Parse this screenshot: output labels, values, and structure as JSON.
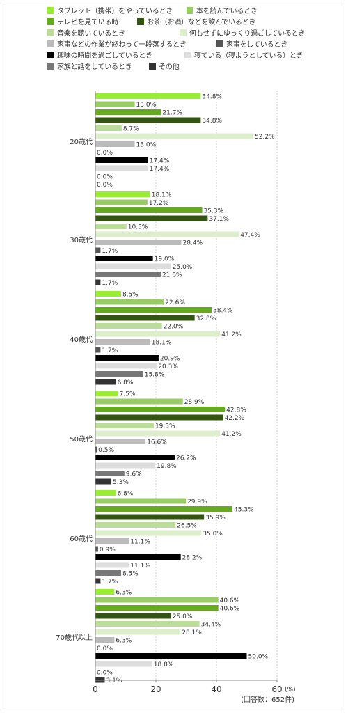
{
  "chart_data": {
    "type": "bar",
    "orientation": "horizontal",
    "categories": [
      "20歳代",
      "30歳代",
      "40歳代",
      "50歳代",
      "60歳代",
      "70歳代以上"
    ],
    "series": [
      {
        "name": "タブレット（携帯）をやっているとき",
        "color": "#99ee33",
        "values": [
          34.8,
          18.1,
          8.5,
          7.5,
          6.8,
          6.3
        ]
      },
      {
        "name": "本を読んでいるとき",
        "color": "#99cc66",
        "values": [
          13.0,
          17.2,
          22.6,
          28.9,
          29.9,
          40.6
        ]
      },
      {
        "name": "テレビを見ている時",
        "color": "#66aa22",
        "values": [
          21.7,
          35.3,
          38.4,
          42.8,
          45.3,
          40.6
        ]
      },
      {
        "name": "お茶（お酒）などを飲んでいるとき",
        "color": "#335511",
        "values": [
          34.8,
          37.1,
          32.8,
          42.2,
          35.9,
          25.0
        ]
      },
      {
        "name": "音楽を聴いているとき",
        "color": "#bbdd99",
        "values": [
          8.7,
          10.3,
          22.0,
          19.3,
          26.5,
          34.4
        ]
      },
      {
        "name": "何もせずにゆっくり過ごしているとき",
        "color": "#ddeecc",
        "values": [
          52.2,
          47.4,
          41.2,
          41.2,
          35.0,
          28.1
        ]
      },
      {
        "name": "家事などの作業が終わって一段落するとき",
        "color": "#bbbbbb",
        "values": [
          13.0,
          28.4,
          18.1,
          16.6,
          11.1,
          6.3
        ]
      },
      {
        "name": "家事をしているとき",
        "color": "#555555",
        "values": [
          0.0,
          1.7,
          1.7,
          0.5,
          0.9,
          0.0
        ]
      },
      {
        "name": "趣味の時間を過ごしているとき",
        "color": "#000000",
        "values": [
          17.4,
          19.0,
          20.9,
          26.2,
          28.2,
          50.0
        ]
      },
      {
        "name": "寝ている（寝ようとしている）とき",
        "color": "#dddddd",
        "values": [
          17.4,
          25.0,
          20.3,
          19.8,
          11.1,
          18.8
        ]
      },
      {
        "name": "家族と話をしているとき",
        "color": "#777777",
        "values": [
          0.0,
          21.6,
          15.8,
          9.6,
          8.5,
          0.0
        ]
      },
      {
        "name": "その他",
        "color": "#333333",
        "values": [
          0.0,
          1.7,
          6.8,
          5.3,
          1.7,
          3.1
        ]
      }
    ],
    "xlim": [
      0,
      60
    ],
    "xticks": [
      0,
      20,
      40,
      60
    ],
    "unit": "(%)",
    "note": "(回答数：652件)",
    "grid": true,
    "legend": "top"
  }
}
